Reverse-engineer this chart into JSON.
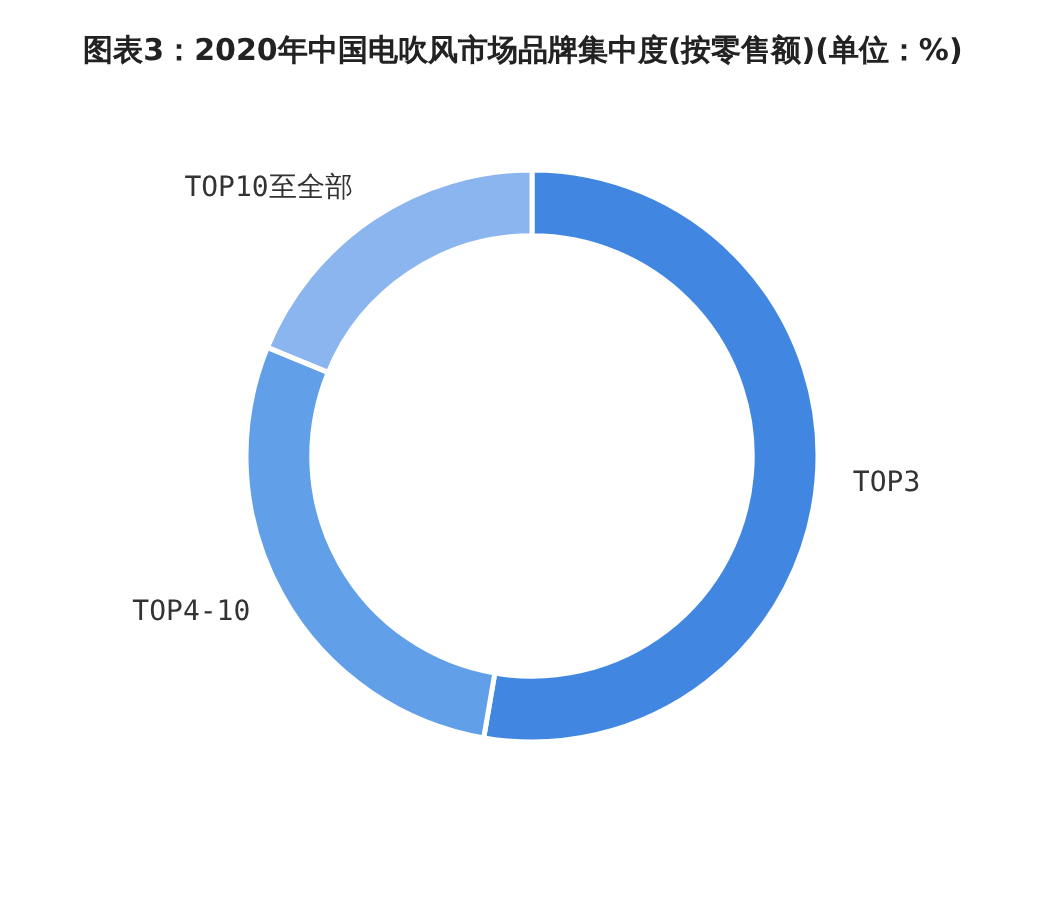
{
  "chart_data": {
    "type": "donut",
    "title": "图表3：2020年中国电吹风市场品牌集中度(按零售额)(单位：%)",
    "categories": [
      "TOP3",
      "TOP4-10",
      "TOP10至全部"
    ],
    "values": [
      52.7,
      28.5,
      18.8
    ],
    "colors": [
      "#4187e1",
      "#619fe9",
      "#8ab5ef"
    ]
  }
}
